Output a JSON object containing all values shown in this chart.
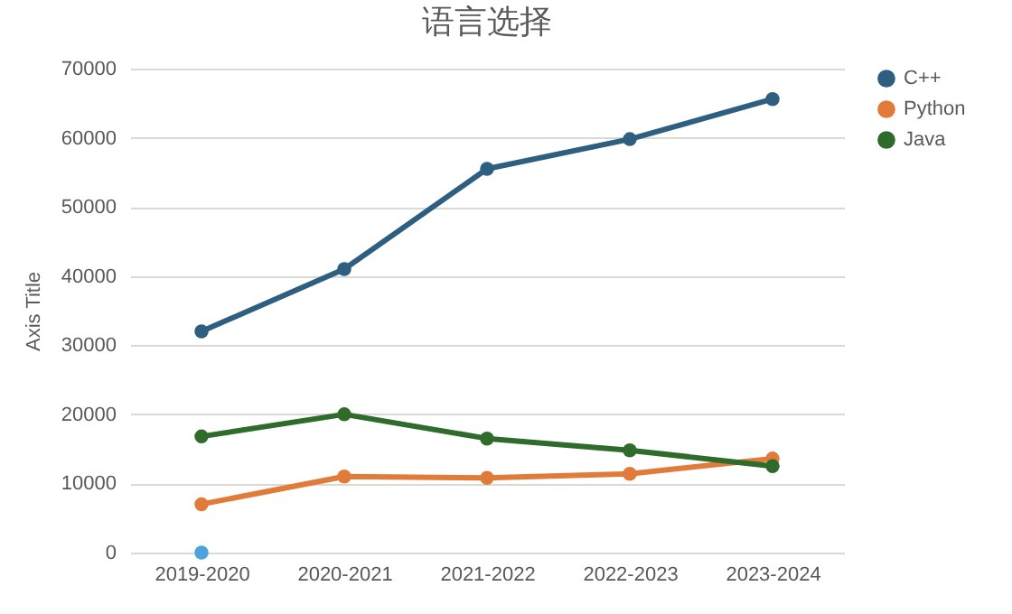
{
  "chart_data": {
    "type": "line",
    "title": "语言选择",
    "ylabel": "Axis Title",
    "categories": [
      "2019-2020",
      "2020-2021",
      "2021-2022",
      "2022-2023",
      "2023-2024"
    ],
    "series": [
      {
        "name": "C++",
        "color": "#2e5e80",
        "values": [
          32000,
          41000,
          55500,
          59800,
          65600
        ]
      },
      {
        "name": "Python",
        "color": "#e07b39",
        "values": [
          7000,
          11000,
          10800,
          11400,
          13600
        ]
      },
      {
        "name": "Java",
        "color": "#2f6b2a",
        "values": [
          16800,
          20000,
          16500,
          14800,
          12500
        ]
      },
      {
        "type": "scatter",
        "color": "#4da3dd",
        "values": [
          0,
          null,
          null,
          null,
          null
        ]
      }
    ],
    "ylim": [
      0,
      70000
    ],
    "yticks": [
      0,
      10000,
      20000,
      30000,
      40000,
      50000,
      60000,
      70000
    ],
    "grid": "y",
    "legend": "right",
    "marker": "circle",
    "line_style": "solid"
  }
}
